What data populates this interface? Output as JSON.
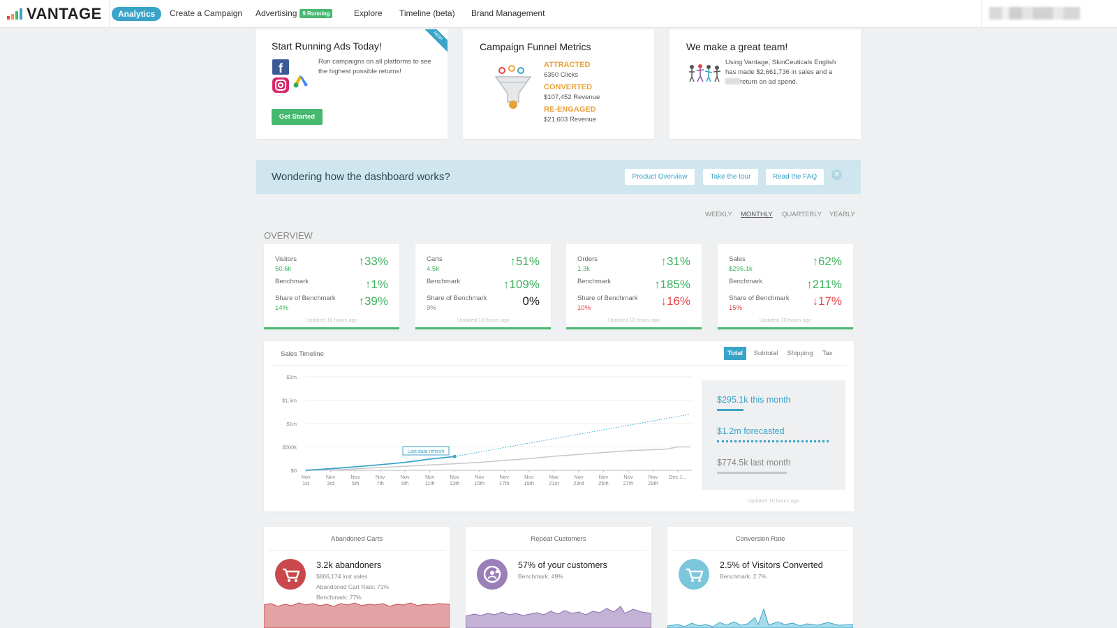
{
  "nav": {
    "logo": "VANTAGE",
    "logo_colors": [
      "#e2474a",
      "#e9a23b",
      "#47b870",
      "#3aa3c8"
    ],
    "active": "Analytics",
    "items": [
      "Create a Campaign",
      "Advertising",
      "Explore",
      "Timeline (beta)",
      "Brand Management"
    ],
    "running_badge": "9 Running"
  },
  "card_ads": {
    "title": "Start Running Ads Today!",
    "text": "Run campaigns on all platforms to see the highest possible returns!",
    "ribbon": "NEW!",
    "button": "Get Started"
  },
  "card_funnel": {
    "title": "Campaign Funnel Metrics",
    "attracted_label": "ATTRACTED",
    "attracted_value": "6350 Clicks",
    "converted_label": "CONVERTED",
    "converted_value": "$107,452 Revenue",
    "reengaged_label": "RE-ENGAGED",
    "reengaged_value": "$21,603 Revenue"
  },
  "card_team": {
    "title": "We make a great team!",
    "line1": "Using Vantage, SkinCeuticals English",
    "line2": "has made $2,661,736 in sales and a",
    "line3": "return on ad spend."
  },
  "banner": {
    "text": "Wondering how the dashboard works?",
    "buttons": [
      "Product Overview",
      "Take the tour",
      "Read the FAQ"
    ],
    "close": "✕"
  },
  "periods": [
    "WEEKLY",
    "MONTHLY",
    "QUARTERLY",
    "YEARLY"
  ],
  "overview_label": "OVERVIEW",
  "stats": [
    {
      "label": "Visitors",
      "value": "50.6k",
      "pct": "33%",
      "bench_pct": "1%",
      "share_pct": "39%",
      "share": "14%"
    },
    {
      "label": "Carts",
      "value": "4.5k",
      "pct": "51%",
      "bench_pct": "109%",
      "share_pct": "0%",
      "share": "9%"
    },
    {
      "label": "Orders",
      "value": "1.3k",
      "pct": "31%",
      "bench_pct": "185%",
      "share_pct": "16%",
      "share": "10%"
    },
    {
      "label": "Sales",
      "value": "$295.1k",
      "pct": "62%",
      "bench_pct": "211%",
      "share_pct": "17%",
      "share": "15%"
    }
  ],
  "stat_common": {
    "benchmark": "Benchmark",
    "share": "Share of Benchmark",
    "updated": "Updated 10 hours ago"
  },
  "timeline": {
    "title": "Sales Timeline",
    "tabs": [
      "Total",
      "Subtotal",
      "Shipping",
      "Tax"
    ],
    "this_month": "$295.1k this month",
    "forecast": "$1.2m forecasted",
    "last_month": "$774.5k last month",
    "updated": "Updated 10 hours ago",
    "refresh_label": "Last data refresh",
    "y_ticks": [
      "$2m",
      "$1.5m",
      "$1m",
      "$500k",
      "$0"
    ],
    "x_ticks": [
      [
        "Nov",
        "1st"
      ],
      [
        "Nov",
        "3rd"
      ],
      [
        "Nov",
        "5th"
      ],
      [
        "Nov",
        "7th"
      ],
      [
        "Nov",
        "9th"
      ],
      [
        "Nov",
        "11th"
      ],
      [
        "Nov",
        "13th"
      ],
      [
        "Nov",
        "15th"
      ],
      [
        "Nov",
        "17th"
      ],
      [
        "Nov",
        "19th"
      ],
      [
        "Nov",
        "21st"
      ],
      [
        "Nov",
        "23rd"
      ],
      [
        "Nov",
        "25th"
      ],
      [
        "Nov",
        "27th"
      ],
      [
        "Nov",
        "29th"
      ],
      [
        "Dec 1...",
        ""
      ]
    ],
    "colors": {
      "current": "#3aa3c8",
      "last": "#c4c7ca"
    }
  },
  "bottom": [
    {
      "title": "Abandoned Carts",
      "headline": "3.2k abandoners",
      "lines": [
        "$806,174 lost sales",
        "Abandoned Cart Rate: 71%",
        "Benchmark: 77%"
      ]
    },
    {
      "title": "Repeat Customers",
      "headline": "57% of your customers",
      "lines": [
        "Benchmark: 49%"
      ]
    },
    {
      "title": "Conversion Rate",
      "headline": "2.5% of Visitors Converted",
      "lines": [
        "Benchmark: 2.7%"
      ]
    }
  ]
}
